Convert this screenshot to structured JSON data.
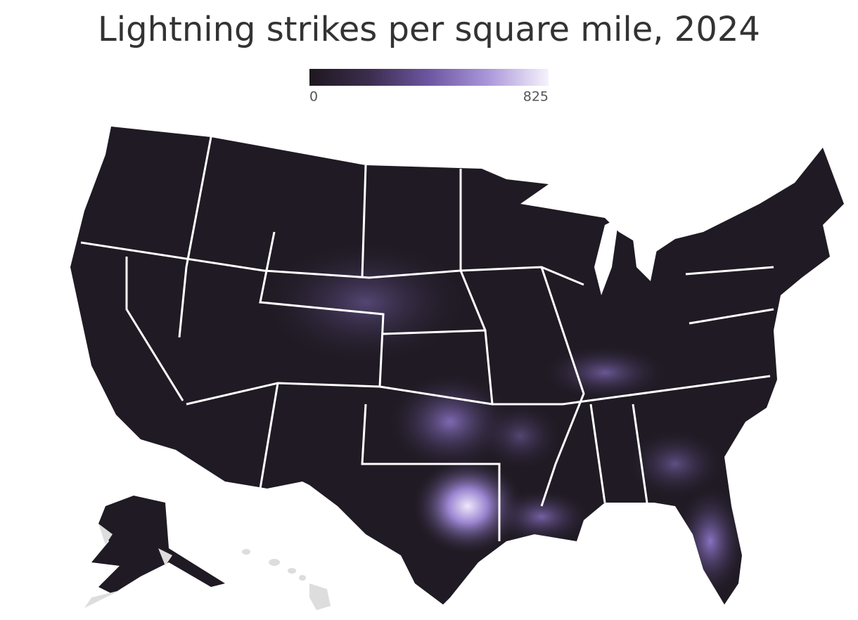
{
  "title": "Lightning strikes per square mile, 2024",
  "legend": {
    "min": 0,
    "max": 825,
    "colors": [
      "#1e1820",
      "#3b2d4d",
      "#6d56a2",
      "#ab98da",
      "#f6f2fc"
    ]
  }
}
